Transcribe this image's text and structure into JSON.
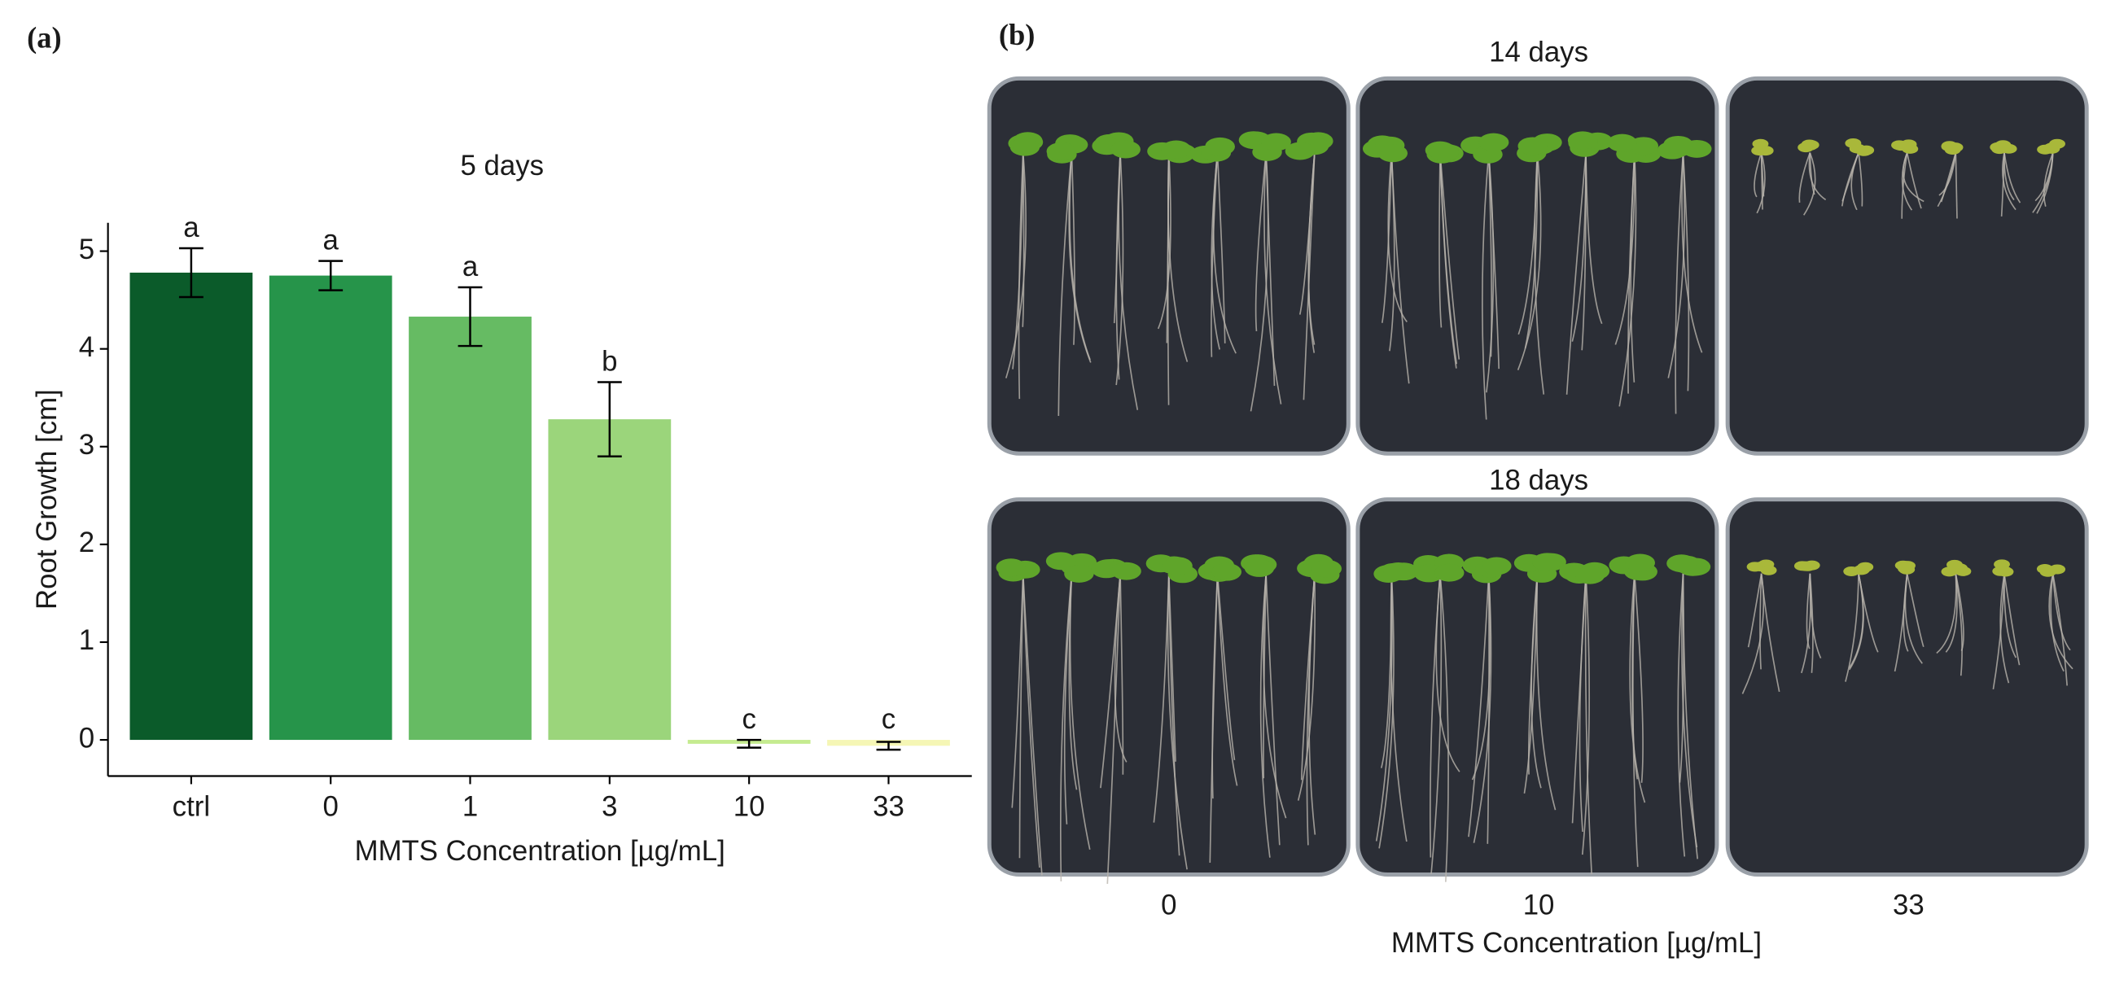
{
  "panel_labels": [
    "(a)",
    "(b)"
  ],
  "chart_data": {
    "type": "bar",
    "title": "5 days",
    "x_label": "MMTS Concentration [µg/mL]",
    "y_label": "Root Growth [cm]",
    "categories": [
      "ctrl",
      "0",
      "1",
      "3",
      "10",
      "33"
    ],
    "values": [
      4.78,
      4.75,
      4.33,
      3.28,
      -0.04,
      -0.06
    ],
    "errors": [
      0.25,
      0.15,
      0.3,
      0.38,
      0.04,
      0.04
    ],
    "letters": [
      "a",
      "a",
      "a",
      "b",
      "c",
      "c"
    ],
    "colors": [
      "#0b5b2a",
      "#26944a",
      "#66bb63",
      "#9bd57b",
      "#c5eb8f",
      "#f5f6b5"
    ],
    "ylim": [
      -0.37,
      5.29
    ],
    "yticks": [
      0,
      1,
      2,
      3,
      4,
      5
    ],
    "grid": false
  },
  "photo_panel": {
    "row_labels": [
      "14 days",
      "18 days"
    ],
    "column_labels": [
      "0",
      "10",
      "33"
    ],
    "x_label": "MMTS Concentration [µg/mL]"
  }
}
